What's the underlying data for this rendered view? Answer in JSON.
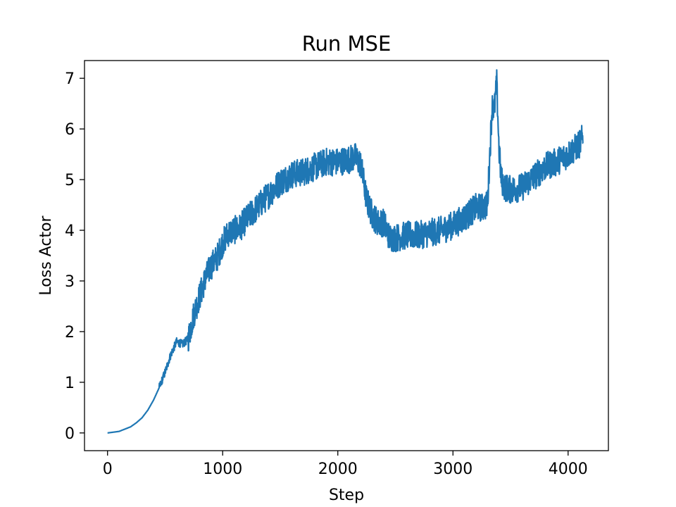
{
  "chart_data": {
    "type": "line",
    "title": "Run MSE",
    "xlabel": "Step",
    "ylabel": "Loss Actor",
    "xlim": [
      -200,
      4350
    ],
    "ylim": [
      -0.35,
      7.35
    ],
    "xticks": [
      0,
      1000,
      2000,
      3000,
      4000
    ],
    "yticks": [
      0,
      1,
      2,
      3,
      4,
      5,
      6,
      7
    ],
    "grid": false,
    "series_color": "#1f77b4",
    "series": [
      {
        "x": [
          0,
          100,
          200,
          250,
          300,
          350,
          400,
          450,
          500,
          550,
          600,
          620,
          650,
          700,
          750,
          800,
          850,
          900,
          950,
          1000,
          1050,
          1100,
          1150,
          1200,
          1300,
          1400,
          1500,
          1600,
          1700,
          1800,
          1900,
          2000,
          2100,
          2150,
          2200,
          2250,
          2300,
          2350,
          2400,
          2450,
          2500,
          2600,
          2700,
          2800,
          2900,
          3000,
          3100,
          3200,
          3250,
          3300,
          3320,
          3340,
          3360,
          3380,
          3400,
          3420,
          3450,
          3500,
          3600,
          3700,
          3800,
          3900,
          4000,
          4100,
          4130
        ],
        "y": [
          0.0,
          0.03,
          0.12,
          0.2,
          0.3,
          0.45,
          0.65,
          0.9,
          1.2,
          1.55,
          1.8,
          1.78,
          1.75,
          1.85,
          2.35,
          2.7,
          3.05,
          3.3,
          3.45,
          3.75,
          3.95,
          4.0,
          4.05,
          4.2,
          4.45,
          4.7,
          4.95,
          5.1,
          5.15,
          5.25,
          5.35,
          5.35,
          5.4,
          5.45,
          5.3,
          4.6,
          4.3,
          4.15,
          4.15,
          3.85,
          3.85,
          3.9,
          3.9,
          3.95,
          4.0,
          4.1,
          4.25,
          4.45,
          4.45,
          4.5,
          5.5,
          6.45,
          6.4,
          6.9,
          5.6,
          5.0,
          4.85,
          4.8,
          4.85,
          5.05,
          5.25,
          5.35,
          5.5,
          5.7,
          5.85
        ]
      }
    ]
  }
}
